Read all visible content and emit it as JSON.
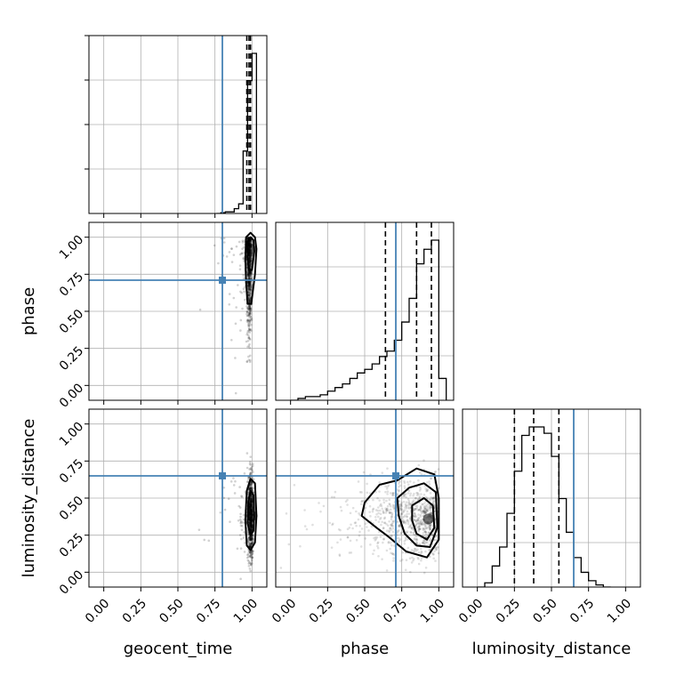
{
  "chart_data": {
    "type": "corner",
    "parameters": [
      "geocent_time",
      "phase",
      "luminosity_distance"
    ],
    "ticks": [
      "0.00",
      "0.25",
      "0.50",
      "0.75",
      "1.00"
    ],
    "range": [
      -0.1,
      1.1
    ],
    "truths": {
      "geocent_time": 0.8,
      "phase": 0.71,
      "luminosity_distance": 0.65
    },
    "colors": {
      "truth": "#4682b4",
      "hist": "#000000",
      "grid": "#b0b0b0"
    },
    "histograms": {
      "geocent_time": {
        "edges": [
          0.76,
          0.79,
          0.82,
          0.85,
          0.88,
          0.91,
          0.94,
          0.97,
          1.0,
          1.03
        ],
        "values": [
          0.0,
          0.005,
          0.01,
          0.01,
          0.03,
          0.06,
          0.39,
          0.83,
          1.0
        ],
        "quantiles": [
          0.965,
          0.98,
          0.99
        ]
      },
      "phase": {
        "edges": [
          0.0,
          0.05,
          0.1,
          0.15,
          0.2,
          0.25,
          0.3,
          0.35,
          0.4,
          0.45,
          0.5,
          0.55,
          0.6,
          0.65,
          0.7,
          0.75,
          0.8,
          0.85,
          0.9,
          0.95,
          1.0,
          1.05
        ],
        "values": [
          0.0,
          0.01,
          0.02,
          0.02,
          0.03,
          0.05,
          0.07,
          0.09,
          0.12,
          0.15,
          0.17,
          0.2,
          0.24,
          0.27,
          0.33,
          0.43,
          0.56,
          0.75,
          0.83,
          0.88,
          0.12
        ],
        "quantiles": [
          0.64,
          0.85,
          0.95
        ]
      },
      "luminosity_distance": {
        "edges": [
          0.0,
          0.05,
          0.1,
          0.15,
          0.2,
          0.25,
          0.3,
          0.35,
          0.4,
          0.45,
          0.5,
          0.55,
          0.6,
          0.65,
          0.7,
          0.75,
          0.8,
          0.85,
          0.9
        ],
        "values": [
          0.0,
          0.02,
          0.1,
          0.19,
          0.35,
          0.55,
          0.72,
          0.76,
          0.76,
          0.73,
          0.62,
          0.42,
          0.26,
          0.14,
          0.07,
          0.03,
          0.01,
          0.0
        ],
        "quantiles": [
          0.25,
          0.38,
          0.55
        ]
      }
    },
    "pairs": [
      {
        "x": "geocent_time",
        "y": "phase",
        "center": [
          0.99,
          0.92
        ],
        "contours": [
          [
            [
              0.97,
              0.55
            ],
            [
              0.995,
              0.55
            ],
            [
              1.02,
              0.75
            ],
            [
              1.03,
              0.92
            ],
            [
              1.02,
              1.0
            ],
            [
              0.99,
              1.03
            ],
            [
              0.96,
              1.0
            ],
            [
              0.955,
              0.85
            ],
            [
              0.96,
              0.7
            ]
          ],
          [
            [
              0.98,
              0.78
            ],
            [
              1.0,
              0.78
            ],
            [
              1.015,
              0.9
            ],
            [
              1.01,
              0.98
            ],
            [
              0.99,
              1.0
            ],
            [
              0.97,
              0.97
            ],
            [
              0.97,
              0.85
            ]
          ]
        ]
      },
      {
        "x": "geocent_time",
        "y": "luminosity_distance",
        "center": [
          1.0,
          0.38
        ],
        "contours": [
          [
            [
              0.99,
              0.15
            ],
            [
              1.02,
              0.2
            ],
            [
              1.03,
              0.38
            ],
            [
              1.02,
              0.6
            ],
            [
              0.99,
              0.63
            ],
            [
              0.965,
              0.55
            ],
            [
              0.955,
              0.35
            ],
            [
              0.965,
              0.18
            ]
          ],
          [
            [
              0.99,
              0.25
            ],
            [
              1.01,
              0.28
            ],
            [
              1.015,
              0.38
            ],
            [
              1.01,
              0.52
            ],
            [
              0.99,
              0.55
            ],
            [
              0.975,
              0.48
            ],
            [
              0.97,
              0.33
            ]
          ]
        ]
      },
      {
        "x": "phase",
        "y": "luminosity_distance",
        "center": [
          0.93,
          0.36
        ],
        "contours": [
          [
            [
              0.5,
              0.47
            ],
            [
              0.6,
              0.59
            ],
            [
              0.72,
              0.62
            ],
            [
              0.85,
              0.7
            ],
            [
              0.97,
              0.66
            ],
            [
              1.0,
              0.5
            ],
            [
              1.0,
              0.22
            ],
            [
              0.92,
              0.1
            ],
            [
              0.78,
              0.14
            ],
            [
              0.66,
              0.24
            ],
            [
              0.58,
              0.3
            ],
            [
              0.48,
              0.38
            ]
          ],
          [
            [
              0.72,
              0.5
            ],
            [
              0.8,
              0.57
            ],
            [
              0.9,
              0.6
            ],
            [
              0.98,
              0.54
            ],
            [
              0.99,
              0.3
            ],
            [
              0.94,
              0.17
            ],
            [
              0.85,
              0.18
            ],
            [
              0.77,
              0.26
            ],
            [
              0.73,
              0.38
            ]
          ],
          [
            [
              0.82,
              0.45
            ],
            [
              0.9,
              0.5
            ],
            [
              0.96,
              0.45
            ],
            [
              0.97,
              0.3
            ],
            [
              0.92,
              0.22
            ],
            [
              0.85,
              0.26
            ],
            [
              0.82,
              0.35
            ]
          ]
        ]
      }
    ]
  }
}
